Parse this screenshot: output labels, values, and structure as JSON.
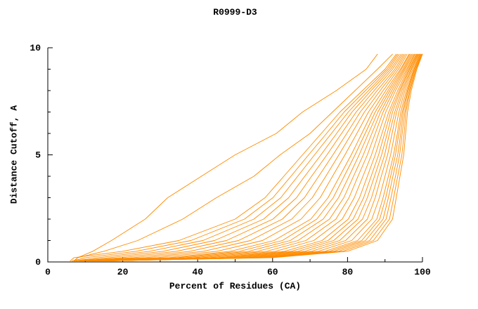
{
  "chart_data": {
    "type": "line",
    "title": "R0999-D3",
    "xlabel": "Percent of Residues (CA)",
    "ylabel": "Distance Cutoff, A",
    "xlim": [
      0,
      100
    ],
    "ylim": [
      0,
      10
    ],
    "xticks": [
      0,
      20,
      40,
      60,
      80,
      100
    ],
    "yticks": [
      0,
      5,
      10
    ],
    "x_minor_step": 10,
    "y_minor_step": 1,
    "grid": false,
    "legend": "none",
    "line_color": "#ff8c00",
    "axis_color": "#000000",
    "description": "Cumulative distance-cutoff curves for many models; each series lists percent-of-residues (x) values aligned with the shared y_grid of distance cutoffs in Angstroms.",
    "y_grid": [
      0.05,
      0.2,
      0.5,
      1,
      2,
      3,
      4,
      5,
      6,
      7,
      8,
      9,
      9.7
    ],
    "series": [
      [
        6,
        7,
        20,
        35,
        50,
        58,
        63,
        68,
        73,
        78,
        84,
        90,
        93
      ],
      [
        6.5,
        10.2,
        23.6,
        38.2,
        52.5,
        60.1,
        64.9,
        69.6,
        74.4,
        79.1,
        84.8,
        90.5,
        93.4
      ],
      [
        7.1,
        13.4,
        27.2,
        41.4,
        55.0,
        62.2,
        66.7,
        71.2,
        75.7,
        80.2,
        85.6,
        91.0,
        93.8
      ],
      [
        7.6,
        16.5,
        30.8,
        44.5,
        57.6,
        64.3,
        68.6,
        72.9,
        77.1,
        81.2,
        86.3,
        91.5,
        94.3
      ],
      [
        8.2,
        19.7,
        34.4,
        47.7,
        60.1,
        66.4,
        70.4,
        74.5,
        78.4,
        82.3,
        87.1,
        92.0,
        94.7
      ],
      [
        8.7,
        22.9,
        38.0,
        50.9,
        62.6,
        68.5,
        72.3,
        76.1,
        79.8,
        83.4,
        87.9,
        92.6,
        95.1
      ],
      [
        9.2,
        26.1,
        41.6,
        54.1,
        65.1,
        70.6,
        74.2,
        77.7,
        81.1,
        84.5,
        88.7,
        93.1,
        95.5
      ],
      [
        9.8,
        29.3,
        45.2,
        57.3,
        67.6,
        72.7,
        76.0,
        79.3,
        82.5,
        85.6,
        89.5,
        93.6,
        95.9
      ],
      [
        10.3,
        32.4,
        48.8,
        60.4,
        70.2,
        74.8,
        77.9,
        81.0,
        83.8,
        86.6,
        90.2,
        94.1,
        96.4
      ],
      [
        10.7,
        34.6,
        51.2,
        62.6,
        71.8,
        76.2,
        79.1,
        82.0,
        84.7,
        87.4,
        90.8,
        94.4,
        96.6
      ],
      [
        11.0,
        36.7,
        53.6,
        64.7,
        73.5,
        77.6,
        80.4,
        83.1,
        85.6,
        88.1,
        91.3,
        94.8,
        96.9
      ],
      [
        11.4,
        38.8,
        56.0,
        66.8,
        75.2,
        79.0,
        81.6,
        84.2,
        86.5,
        88.8,
        91.8,
        95.1,
        97.2
      ],
      [
        11.8,
        40.9,
        58.4,
        68.9,
        76.9,
        80.4,
        82.8,
        85.3,
        87.4,
        89.5,
        92.3,
        95.4,
        97.5
      ],
      [
        12.1,
        43.0,
        60.8,
        71.0,
        78.6,
        81.8,
        84.1,
        86.4,
        88.3,
        90.2,
        92.8,
        95.8,
        97.8
      ],
      [
        12.5,
        45.2,
        63.2,
        73.2,
        80.2,
        83.2,
        85.3,
        87.4,
        89.2,
        91.0,
        93.4,
        96.1,
        98.0
      ],
      [
        12.8,
        46.8,
        65.0,
        74.8,
        81.5,
        84.3,
        86.3,
        88.3,
        89.9,
        91.5,
        93.8,
        96.4,
        98.3
      ],
      [
        13.0,
        48.3,
        66.8,
        76.3,
        82.8,
        85.3,
        87.2,
        89.1,
        90.6,
        92.0,
        94.1,
        96.6,
        98.5
      ],
      [
        13.3,
        49.9,
        68.6,
        77.9,
        84.0,
        86.4,
        88.1,
        89.9,
        91.2,
        92.6,
        94.5,
        96.9,
        98.7
      ],
      [
        13.6,
        51.5,
        70.4,
        79.5,
        85.3,
        87.4,
        89.0,
        90.7,
        91.9,
        93.1,
        94.9,
        97.1,
        98.9
      ],
      [
        13.8,
        53.1,
        72.2,
        81.1,
        86.5,
        88.5,
        90.0,
        91.5,
        92.6,
        93.7,
        95.3,
        97.4,
        99.1
      ],
      [
        14.1,
        54.7,
        74.0,
        82.7,
        87.8,
        89.5,
        90.9,
        92.3,
        93.3,
        94.2,
        95.7,
        97.7,
        99.3
      ],
      [
        14.3,
        55.8,
        75.2,
        83.8,
        88.6,
        90.2,
        91.5,
        92.8,
        93.7,
        94.6,
        96.0,
        97.8,
        99.4
      ],
      [
        14.5,
        56.8,
        76.4,
        84.8,
        89.5,
        90.9,
        92.1,
        93.4,
        94.2,
        94.9,
        96.2,
        98.0,
        99.6
      ],
      [
        14.6,
        57.9,
        77.6,
        85.9,
        90.3,
        91.6,
        92.8,
        93.9,
        94.6,
        95.3,
        96.5,
        98.2,
        99.7
      ],
      [
        14.8,
        58.9,
        78.8,
        86.9,
        91.2,
        92.3,
        93.4,
        94.5,
        95.1,
        95.6,
        96.7,
        98.3,
        99.9
      ],
      [
        15,
        60,
        80,
        88,
        92,
        93,
        94,
        95,
        95.5,
        96,
        97,
        98.5,
        100
      ],
      [
        7,
        8,
        15,
        24,
        36,
        45,
        55,
        62,
        70,
        76,
        82,
        88,
        92
      ],
      [
        7,
        8,
        12,
        17,
        26,
        32,
        41,
        50,
        61,
        68,
        77,
        85,
        88
      ]
    ]
  }
}
